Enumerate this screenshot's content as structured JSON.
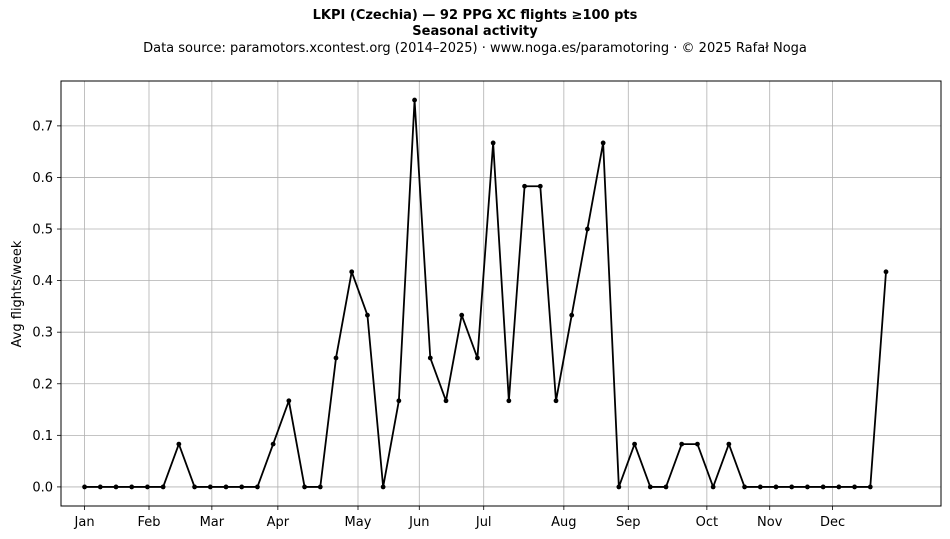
{
  "header": {
    "title": "LKPI (Czechia)  —  92 PPG XC flights ≥100 pts",
    "subtitle": "Seasonal activity",
    "source": "Data source: paramotors.xcontest.org (2014–2025)  ·  www.noga.es/paramotoring  ·  © 2025 Rafał Noga"
  },
  "chart_data": {
    "type": "line",
    "title": "LKPI (Czechia)  —  92 PPG XC flights ≥100 pts",
    "subtitle": "Seasonal activity",
    "xlabel": "",
    "ylabel": "Avg flights/week",
    "x_unit": "week of year",
    "xlim": [
      -1.5,
      54.5
    ],
    "ylim": [
      -0.037,
      0.787
    ],
    "yticks": [
      0.0,
      0.1,
      0.2,
      0.3,
      0.4,
      0.5,
      0.6,
      0.7
    ],
    "ytick_labels": [
      "0.0",
      "0.1",
      "0.2",
      "0.3",
      "0.4",
      "0.5",
      "0.6",
      "0.7"
    ],
    "xticks": [
      {
        "label": "Jan",
        "week": 0
      },
      {
        "label": "Feb",
        "week": 4.1
      },
      {
        "label": "Mar",
        "week": 8.1
      },
      {
        "label": "Apr",
        "week": 12.3
      },
      {
        "label": "May",
        "week": 17.4
      },
      {
        "label": "Jun",
        "week": 21.3
      },
      {
        "label": "Jul",
        "week": 25.4
      },
      {
        "label": "Aug",
        "week": 30.5
      },
      {
        "label": "Sep",
        "week": 34.6
      },
      {
        "label": "Oct",
        "week": 39.6
      },
      {
        "label": "Nov",
        "week": 43.6
      },
      {
        "label": "Dec",
        "week": 47.6
      }
    ],
    "grid": true,
    "line_color": "#000000",
    "series": [
      {
        "x": [
          0,
          1,
          2,
          3,
          4,
          5,
          6,
          7,
          8,
          9,
          10,
          11,
          12,
          13,
          14,
          15,
          16,
          17,
          18,
          19,
          20,
          21,
          22,
          23,
          24,
          25,
          26,
          27,
          28,
          29,
          30,
          31,
          32,
          33,
          34,
          35,
          36,
          37,
          38,
          39,
          40,
          41,
          42,
          43,
          44,
          45,
          46,
          47,
          48,
          49,
          50,
          51
        ],
        "values": [
          0,
          0,
          0,
          0,
          0,
          0,
          0.083,
          0,
          0,
          0,
          0,
          0,
          0.083,
          0.167,
          0,
          0,
          0.25,
          0.417,
          0.333,
          0,
          0.167,
          0.75,
          0.25,
          0.167,
          0.333,
          0.25,
          0.667,
          0.167,
          0.583,
          0.583,
          0.167,
          0.333,
          0.5,
          0.667,
          0,
          0.083,
          0,
          0,
          0.083,
          0.083,
          0,
          0.083,
          0,
          0,
          0,
          0,
          0,
          0,
          0,
          0,
          0,
          0.417
        ]
      }
    ]
  }
}
